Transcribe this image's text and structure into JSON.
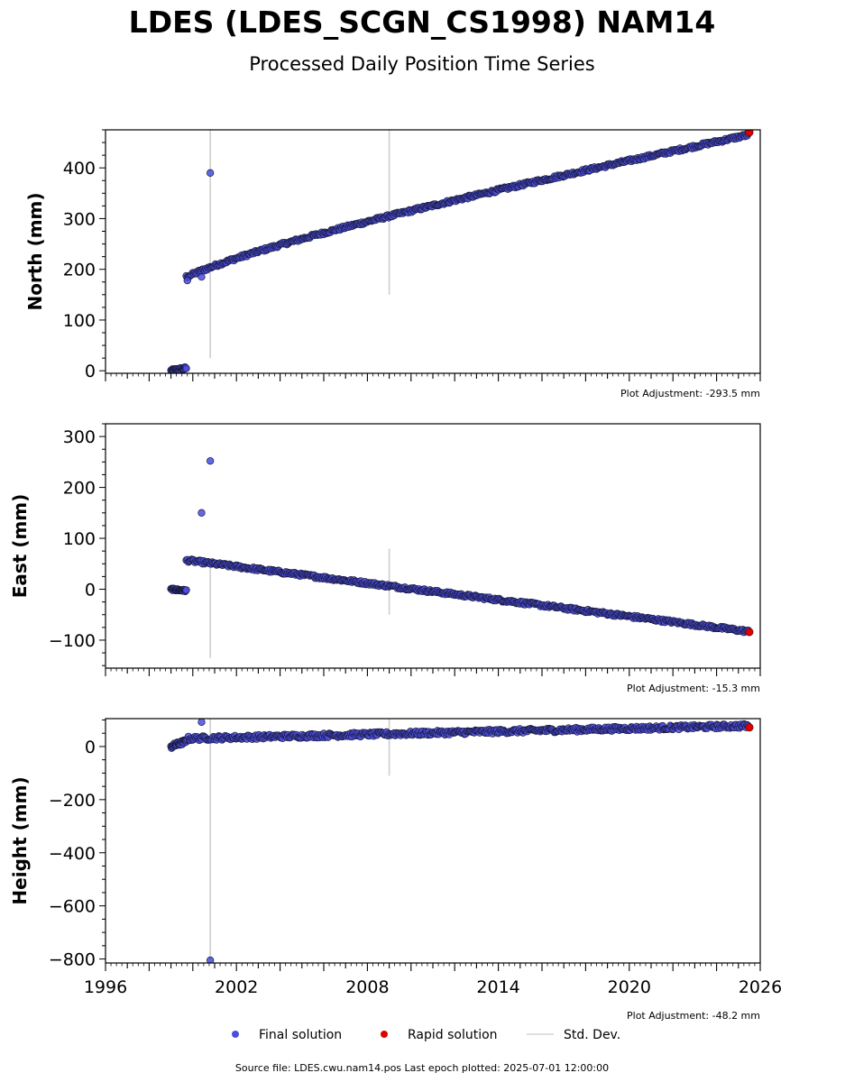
{
  "title": "LDES (LDES_SCGN_CS1998) NAM14",
  "subtitle": "Processed Daily Position Time Series",
  "legend": {
    "final": "Final solution",
    "rapid": "Rapid solution",
    "std": "Std. Dev."
  },
  "source_line": "Source file: LDES.cwu.nam14.pos  Last epoch plotted: 2025-07-01 12:00:00",
  "colors": {
    "final": "#4a4ee0",
    "final_edge": "#1a1a3a",
    "rapid": "#e00000",
    "std": "#d3d3d3",
    "axis": "#000000"
  },
  "chart_data": [
    {
      "type": "scatter",
      "panel": "north",
      "ylabel": "North (mm)",
      "adjustment": "Plot Adjustment: -293.5 mm",
      "xlim": [
        1996,
        2026
      ],
      "ylim": [
        -5,
        475
      ],
      "yticks": [
        0,
        100,
        200,
        300,
        400
      ],
      "xticks": [],
      "series": [
        {
          "name": "Final solution",
          "segments": [
            {
              "x": [
                1999.0,
                1999.7
              ],
              "y": [
                0,
                5
              ],
              "n": 30,
              "noise": 3
            },
            {
              "x": [
                1999.7,
                2025.45
              ],
              "y": [
                185,
                465
              ],
              "n": 520,
              "noise": 3,
              "curve": "log"
            }
          ],
          "outliers": [
            {
              "x": 2000.8,
              "y": 390
            },
            {
              "x": 2000.4,
              "y": 185
            },
            {
              "x": 1999.75,
              "y": 178
            }
          ]
        },
        {
          "name": "Rapid solution",
          "points": [
            {
              "x": 2025.5,
              "y": 470
            }
          ]
        }
      ],
      "std_dev": [
        {
          "x": 2000.8,
          "y0": 25,
          "y1": 475
        },
        {
          "x": 2009.0,
          "y0": 150,
          "y1": 475
        }
      ]
    },
    {
      "type": "scatter",
      "panel": "east",
      "ylabel": "East (mm)",
      "adjustment": "Plot Adjustment: -15.3 mm",
      "xlim": [
        1996,
        2026
      ],
      "ylim": [
        -155,
        325
      ],
      "yticks": [
        -100,
        0,
        100,
        200,
        300
      ],
      "xticks": [],
      "series": [
        {
          "name": "Final solution",
          "segments": [
            {
              "x": [
                1999.0,
                1999.7
              ],
              "y": [
                0,
                -3
              ],
              "n": 30,
              "noise": 2
            },
            {
              "x": [
                1999.7,
                2025.45
              ],
              "y": [
                57,
                -83
              ],
              "n": 520,
              "noise": 3
            }
          ],
          "outliers": [
            {
              "x": 2000.8,
              "y": 252
            },
            {
              "x": 2000.4,
              "y": 150
            }
          ]
        },
        {
          "name": "Rapid solution",
          "points": [
            {
              "x": 2025.5,
              "y": -84
            }
          ]
        }
      ],
      "std_dev": [
        {
          "x": 2000.8,
          "y0": -135,
          "y1": 55
        },
        {
          "x": 2009.0,
          "y0": -50,
          "y1": 80
        }
      ]
    },
    {
      "type": "scatter",
      "panel": "height",
      "ylabel": "Height (mm)",
      "adjustment": "Plot Adjustment: -48.2 mm",
      "xlim": [
        1996,
        2026
      ],
      "ylim": [
        -815,
        105
      ],
      "yticks": [
        -800,
        -600,
        -400,
        -200,
        0
      ],
      "xticks": [
        1996,
        2002,
        2008,
        2014,
        2020,
        2026
      ],
      "series": [
        {
          "name": "Final solution",
          "segments": [
            {
              "x": [
                1999.0,
                1999.7
              ],
              "y": [
                0,
                20
              ],
              "n": 30,
              "noise": 8
            },
            {
              "x": [
                1999.7,
                2025.45
              ],
              "y": [
                30,
                78
              ],
              "n": 520,
              "noise": 8
            }
          ],
          "outliers": [
            {
              "x": 2000.4,
              "y": 92
            },
            {
              "x": 2000.8,
              "y": -805
            }
          ]
        },
        {
          "name": "Rapid solution",
          "points": [
            {
              "x": 2025.5,
              "y": 72
            }
          ]
        }
      ],
      "std_dev": [
        {
          "x": 2000.8,
          "y0": -815,
          "y1": 105
        },
        {
          "x": 2009.0,
          "y0": -110,
          "y1": 105
        }
      ]
    }
  ]
}
